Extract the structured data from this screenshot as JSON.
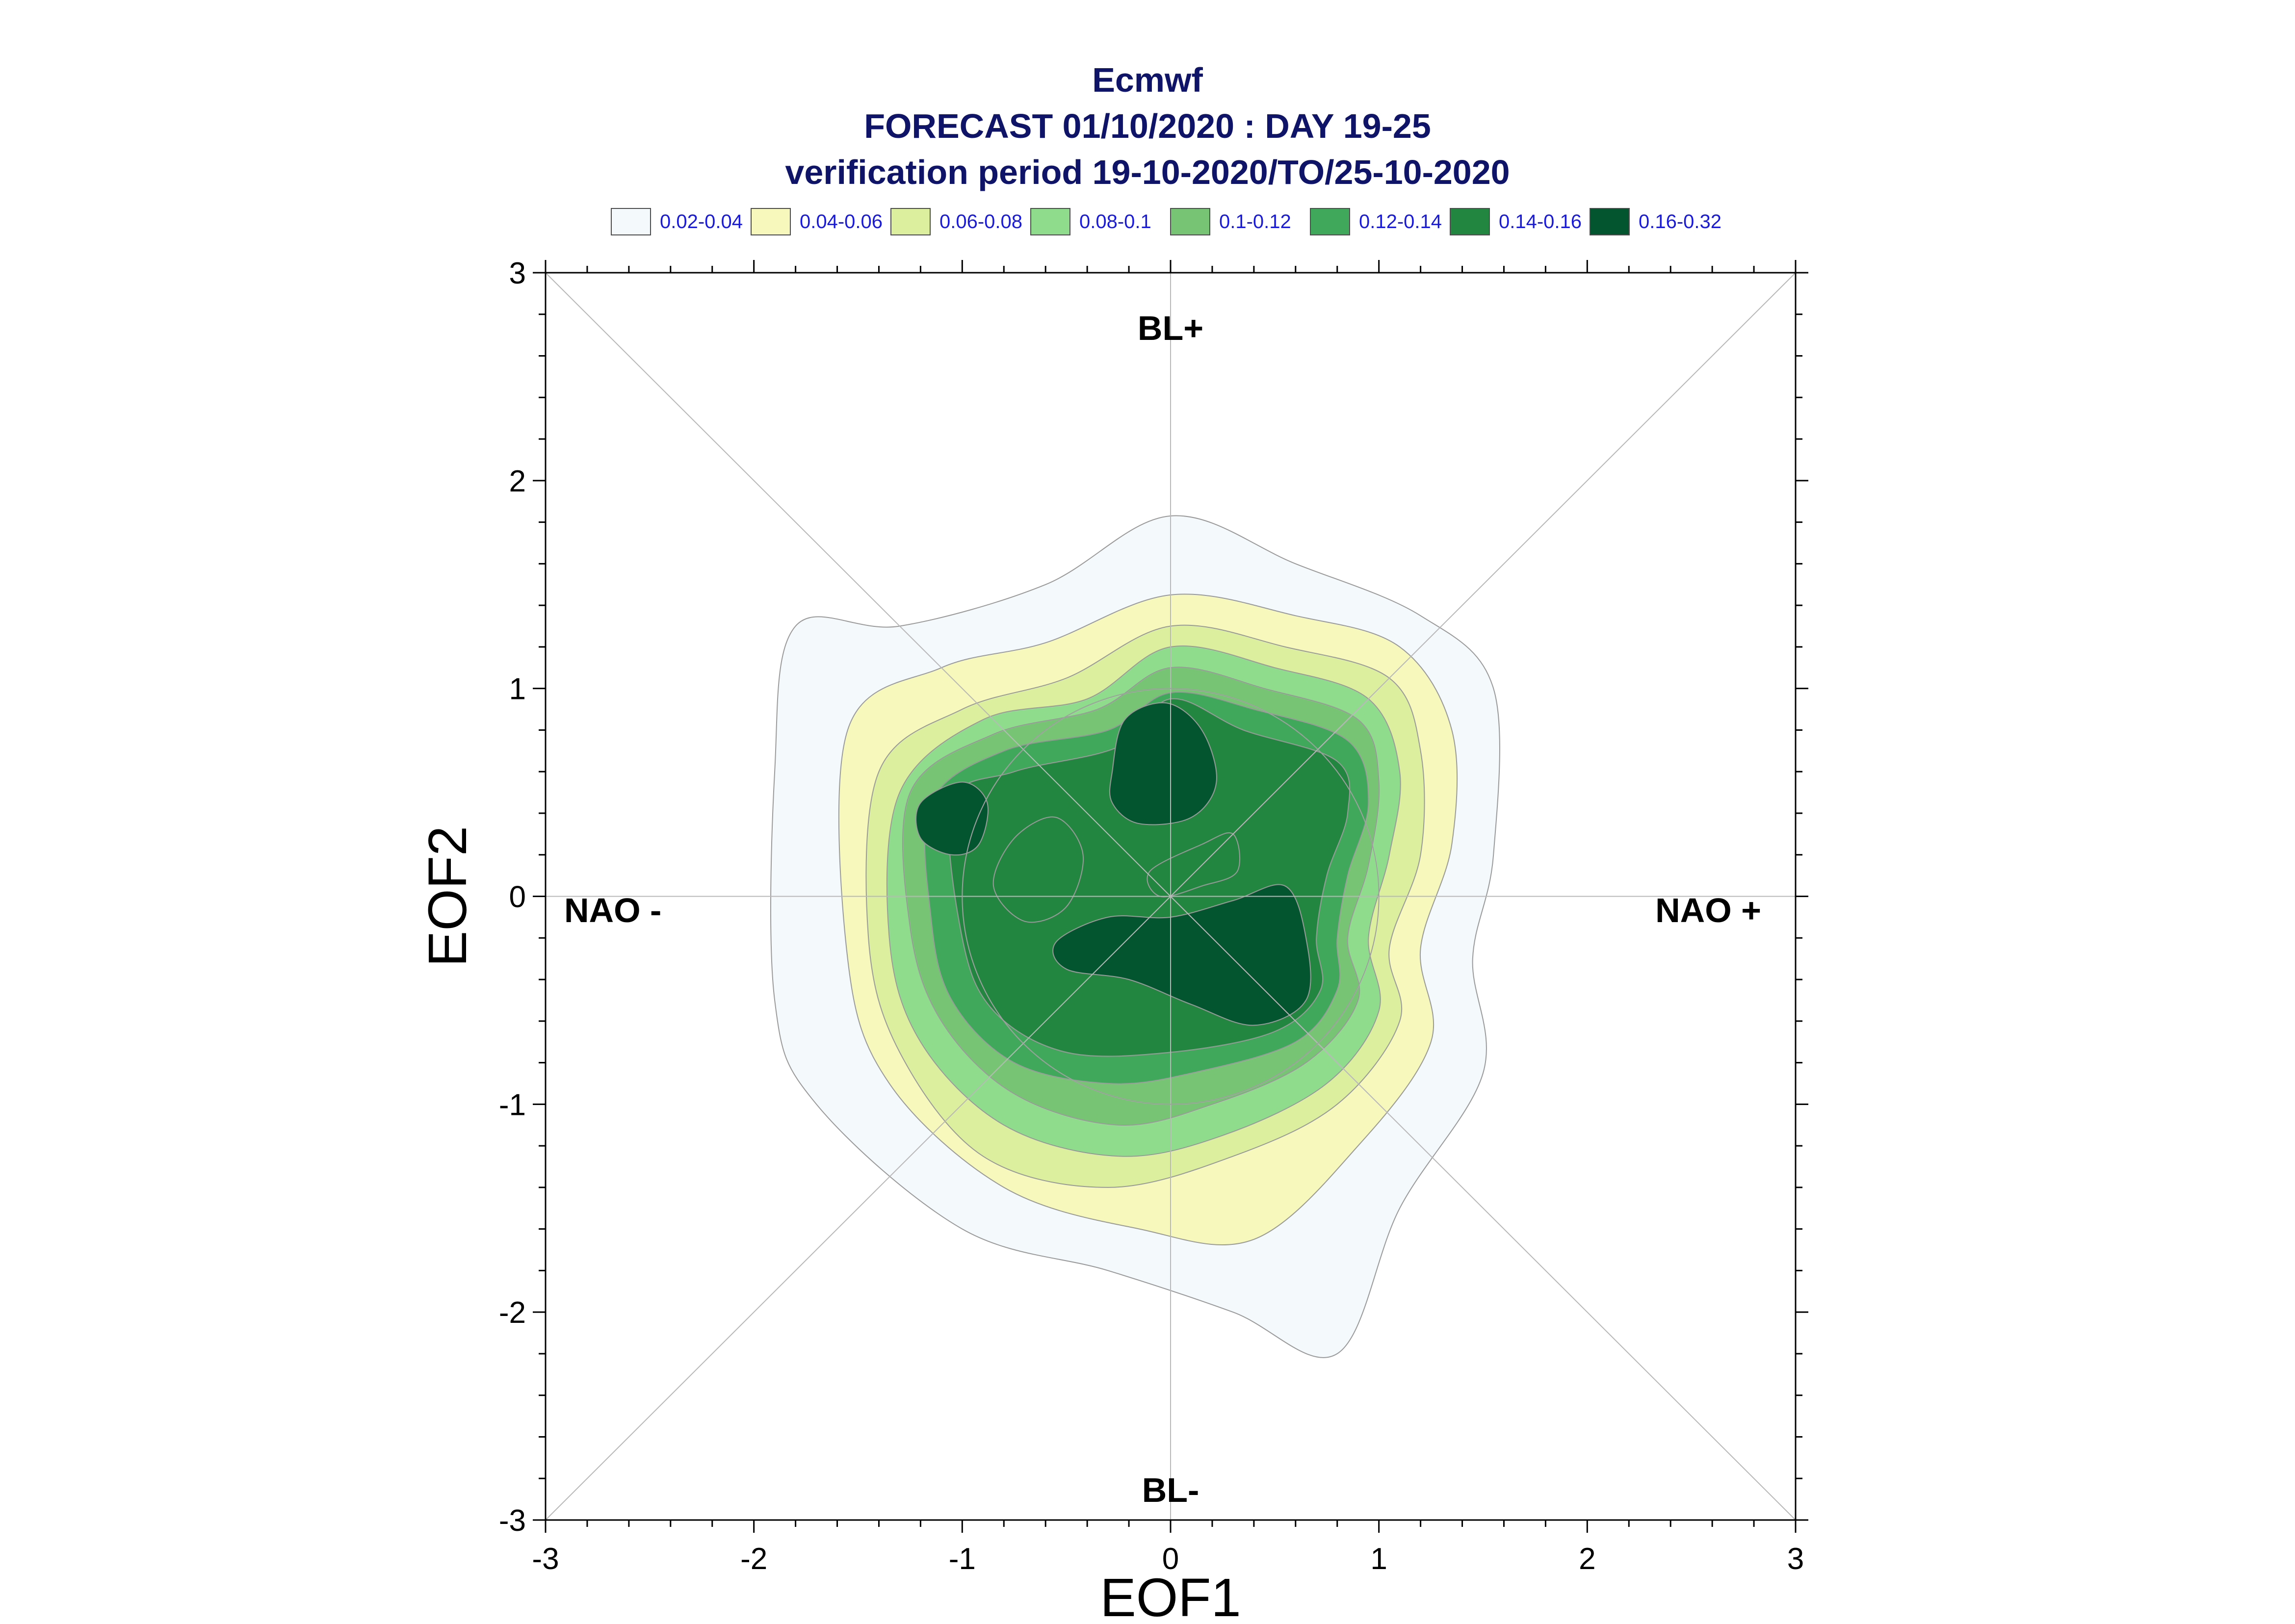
{
  "title": {
    "line1": "Ecmwf",
    "line2": "FORECAST 01/10/2020 : DAY 19-25",
    "line3": "verification period 19-10-2020/TO/25-10-2020"
  },
  "legend": [
    {
      "label": "0.02-0.04",
      "color": "#f4f9fb"
    },
    {
      "label": "0.04-0.06",
      "color": "#f6f9bb"
    },
    {
      "label": "0.06-0.08",
      "color": "#dcef9f"
    },
    {
      "label": "0.08-0.1",
      "color": "#8fdc8c"
    },
    {
      "label": "0.1-0.12",
      "color": "#77c574"
    },
    {
      "label": "0.12-0.14",
      "color": "#40a85a"
    },
    {
      "label": "0.14-0.16",
      "color": "#238640"
    },
    {
      "label": "0.16-0.32",
      "color": "#03552f"
    }
  ],
  "chart_data": {
    "type": "contour",
    "xlabel": "EOF1",
    "ylabel": "EOF2",
    "xlim": [
      -3,
      3
    ],
    "ylim": [
      -3,
      3
    ],
    "xticks": [
      "-3",
      "-2",
      "-1",
      "0",
      "1",
      "2",
      "3"
    ],
    "yticks": [
      "-3",
      "-2",
      "-1",
      "0",
      "1",
      "2",
      "3"
    ],
    "regime_labels": {
      "top": "BL+",
      "bottom": "BL-",
      "left": "NAO -",
      "right": "NAO +"
    },
    "reference_circle_radius": 1,
    "contours": [
      {
        "level": "0.02-0.04",
        "polygons": [
          [
            [
              -1.8,
              1.3
            ],
            [
              -1.3,
              1.3
            ],
            [
              -0.6,
              1.5
            ],
            [
              0,
              1.83
            ],
            [
              0.6,
              1.6
            ],
            [
              1.2,
              1.35
            ],
            [
              1.55,
              1.0
            ],
            [
              1.55,
              0.2
            ],
            [
              1.45,
              -0.3
            ],
            [
              1.5,
              -0.85
            ],
            [
              1.1,
              -1.5
            ],
            [
              0.8,
              -2.2
            ],
            [
              0.3,
              -2.0
            ],
            [
              -0.3,
              -1.8
            ],
            [
              -1.0,
              -1.6
            ],
            [
              -1.7,
              -1.0
            ],
            [
              -1.9,
              -0.5
            ],
            [
              -1.9,
              0.6
            ]
          ]
        ]
      },
      {
        "level": "0.04-0.06",
        "polygons": [
          [
            [
              -1.55,
              0.8
            ],
            [
              -1.1,
              1.1
            ],
            [
              -0.6,
              1.22
            ],
            [
              0,
              1.45
            ],
            [
              0.6,
              1.35
            ],
            [
              1.1,
              1.2
            ],
            [
              1.35,
              0.8
            ],
            [
              1.35,
              0.25
            ],
            [
              1.2,
              -0.25
            ],
            [
              1.25,
              -0.7
            ],
            [
              0.9,
              -1.2
            ],
            [
              0.4,
              -1.65
            ],
            [
              -0.15,
              -1.6
            ],
            [
              -0.8,
              -1.4
            ],
            [
              -1.35,
              -0.9
            ],
            [
              -1.55,
              -0.3
            ]
          ]
        ]
      },
      {
        "level": "0.06-0.08",
        "polygons": [
          [
            [
              -1.4,
              0.6
            ],
            [
              -1.0,
              0.9
            ],
            [
              -0.5,
              1.05
            ],
            [
              0,
              1.3
            ],
            [
              0.55,
              1.2
            ],
            [
              1.05,
              1.05
            ],
            [
              1.2,
              0.7
            ],
            [
              1.2,
              0.2
            ],
            [
              1.05,
              -0.25
            ],
            [
              1.1,
              -0.6
            ],
            [
              0.8,
              -1.0
            ],
            [
              0.3,
              -1.25
            ],
            [
              -0.3,
              -1.4
            ],
            [
              -0.9,
              -1.25
            ],
            [
              -1.3,
              -0.75
            ],
            [
              -1.45,
              -0.2
            ]
          ]
        ]
      },
      {
        "level": "0.08-0.1",
        "polygons": [
          [
            [
              -1.3,
              0.5
            ],
            [
              -0.9,
              0.85
            ],
            [
              -0.4,
              0.95
            ],
            [
              0,
              1.2
            ],
            [
              0.5,
              1.1
            ],
            [
              0.95,
              0.95
            ],
            [
              1.1,
              0.6
            ],
            [
              1.05,
              0.2
            ],
            [
              0.95,
              -0.2
            ],
            [
              1.0,
              -0.55
            ],
            [
              0.75,
              -0.9
            ],
            [
              0.25,
              -1.15
            ],
            [
              -0.25,
              -1.25
            ],
            [
              -0.8,
              -1.1
            ],
            [
              -1.2,
              -0.7
            ],
            [
              -1.35,
              -0.2
            ]
          ]
        ]
      },
      {
        "level": "0.1-0.12",
        "polygons": [
          [
            [
              -1.25,
              0.5
            ],
            [
              -0.85,
              0.78
            ],
            [
              -0.35,
              0.9
            ],
            [
              0,
              1.1
            ],
            [
              0.45,
              1.0
            ],
            [
              0.9,
              0.85
            ],
            [
              1.0,
              0.55
            ],
            [
              0.95,
              0.15
            ],
            [
              0.85,
              -0.2
            ],
            [
              0.9,
              -0.5
            ],
            [
              0.65,
              -0.8
            ],
            [
              0.2,
              -1.0
            ],
            [
              -0.25,
              -1.1
            ],
            [
              -0.75,
              -0.95
            ],
            [
              -1.1,
              -0.6
            ],
            [
              -1.25,
              -0.15
            ]
          ]
        ]
      },
      {
        "level": "0.12-0.14",
        "polygons": [
          [
            [
              -1.15,
              0.45
            ],
            [
              -0.8,
              0.7
            ],
            [
              -0.3,
              0.8
            ],
            [
              0,
              0.98
            ],
            [
              0.4,
              0.9
            ],
            [
              0.85,
              0.75
            ],
            [
              0.95,
              0.45
            ],
            [
              0.85,
              0.1
            ],
            [
              0.8,
              -0.2
            ],
            [
              0.8,
              -0.45
            ],
            [
              0.6,
              -0.7
            ],
            [
              0.1,
              -0.85
            ],
            [
              -0.3,
              -0.9
            ],
            [
              -0.75,
              -0.8
            ],
            [
              -1.05,
              -0.5
            ],
            [
              -1.15,
              -0.1
            ]
          ]
        ]
      },
      {
        "level": "0.14-0.16",
        "polygons": [
          [
            [
              -1.05,
              0.45
            ],
            [
              -0.75,
              0.6
            ],
            [
              -0.25,
              0.72
            ],
            [
              0,
              0.95
            ],
            [
              0.35,
              0.8
            ],
            [
              0.8,
              0.65
            ],
            [
              0.85,
              0.4
            ],
            [
              0.75,
              0.1
            ],
            [
              0.7,
              -0.2
            ],
            [
              0.72,
              -0.45
            ],
            [
              0.5,
              -0.65
            ],
            [
              0.0,
              -0.75
            ],
            [
              -0.5,
              -0.75
            ],
            [
              -0.85,
              -0.55
            ],
            [
              -1.0,
              -0.2
            ]
          ]
        ]
      },
      {
        "level": "0.16-0.32",
        "polygons": [
          [
            [
              -0.28,
              0.6
            ],
            [
              -0.22,
              0.85
            ],
            [
              -0.02,
              0.93
            ],
            [
              0.15,
              0.8
            ],
            [
              0.22,
              0.55
            ],
            [
              0.1,
              0.38
            ],
            [
              -0.15,
              0.35
            ],
            [
              -0.28,
              0.45
            ]
          ],
          [
            [
              -0.55,
              -0.22
            ],
            [
              -0.3,
              -0.1
            ],
            [
              0,
              -0.1
            ],
            [
              0.3,
              -0.02
            ],
            [
              0.55,
              0.05
            ],
            [
              0.65,
              -0.2
            ],
            [
              0.65,
              -0.5
            ],
            [
              0.4,
              -0.62
            ],
            [
              0.1,
              -0.52
            ],
            [
              -0.2,
              -0.4
            ],
            [
              -0.5,
              -0.35
            ]
          ],
          [
            [
              -1.2,
              0.45
            ],
            [
              -1.0,
              0.55
            ],
            [
              -0.88,
              0.45
            ],
            [
              -0.92,
              0.25
            ],
            [
              -1.05,
              0.2
            ],
            [
              -1.2,
              0.28
            ]
          ]
        ]
      },
      {
        "level": "0.14-0.16",
        "polygons": [
          [
            [
              -0.85,
              0.05
            ],
            [
              -0.75,
              0.28
            ],
            [
              -0.55,
              0.38
            ],
            [
              -0.42,
              0.2
            ],
            [
              -0.5,
              -0.05
            ],
            [
              -0.7,
              -0.12
            ]
          ]
        ]
      },
      {
        "level": "0.14-0.16",
        "polygons": [
          [
            [
              -0.1,
              0.12
            ],
            [
              0.15,
              0.25
            ],
            [
              0.3,
              0.3
            ],
            [
              0.32,
              0.12
            ],
            [
              0.15,
              0.05
            ],
            [
              -0.05,
              0.0
            ]
          ]
        ]
      }
    ]
  }
}
